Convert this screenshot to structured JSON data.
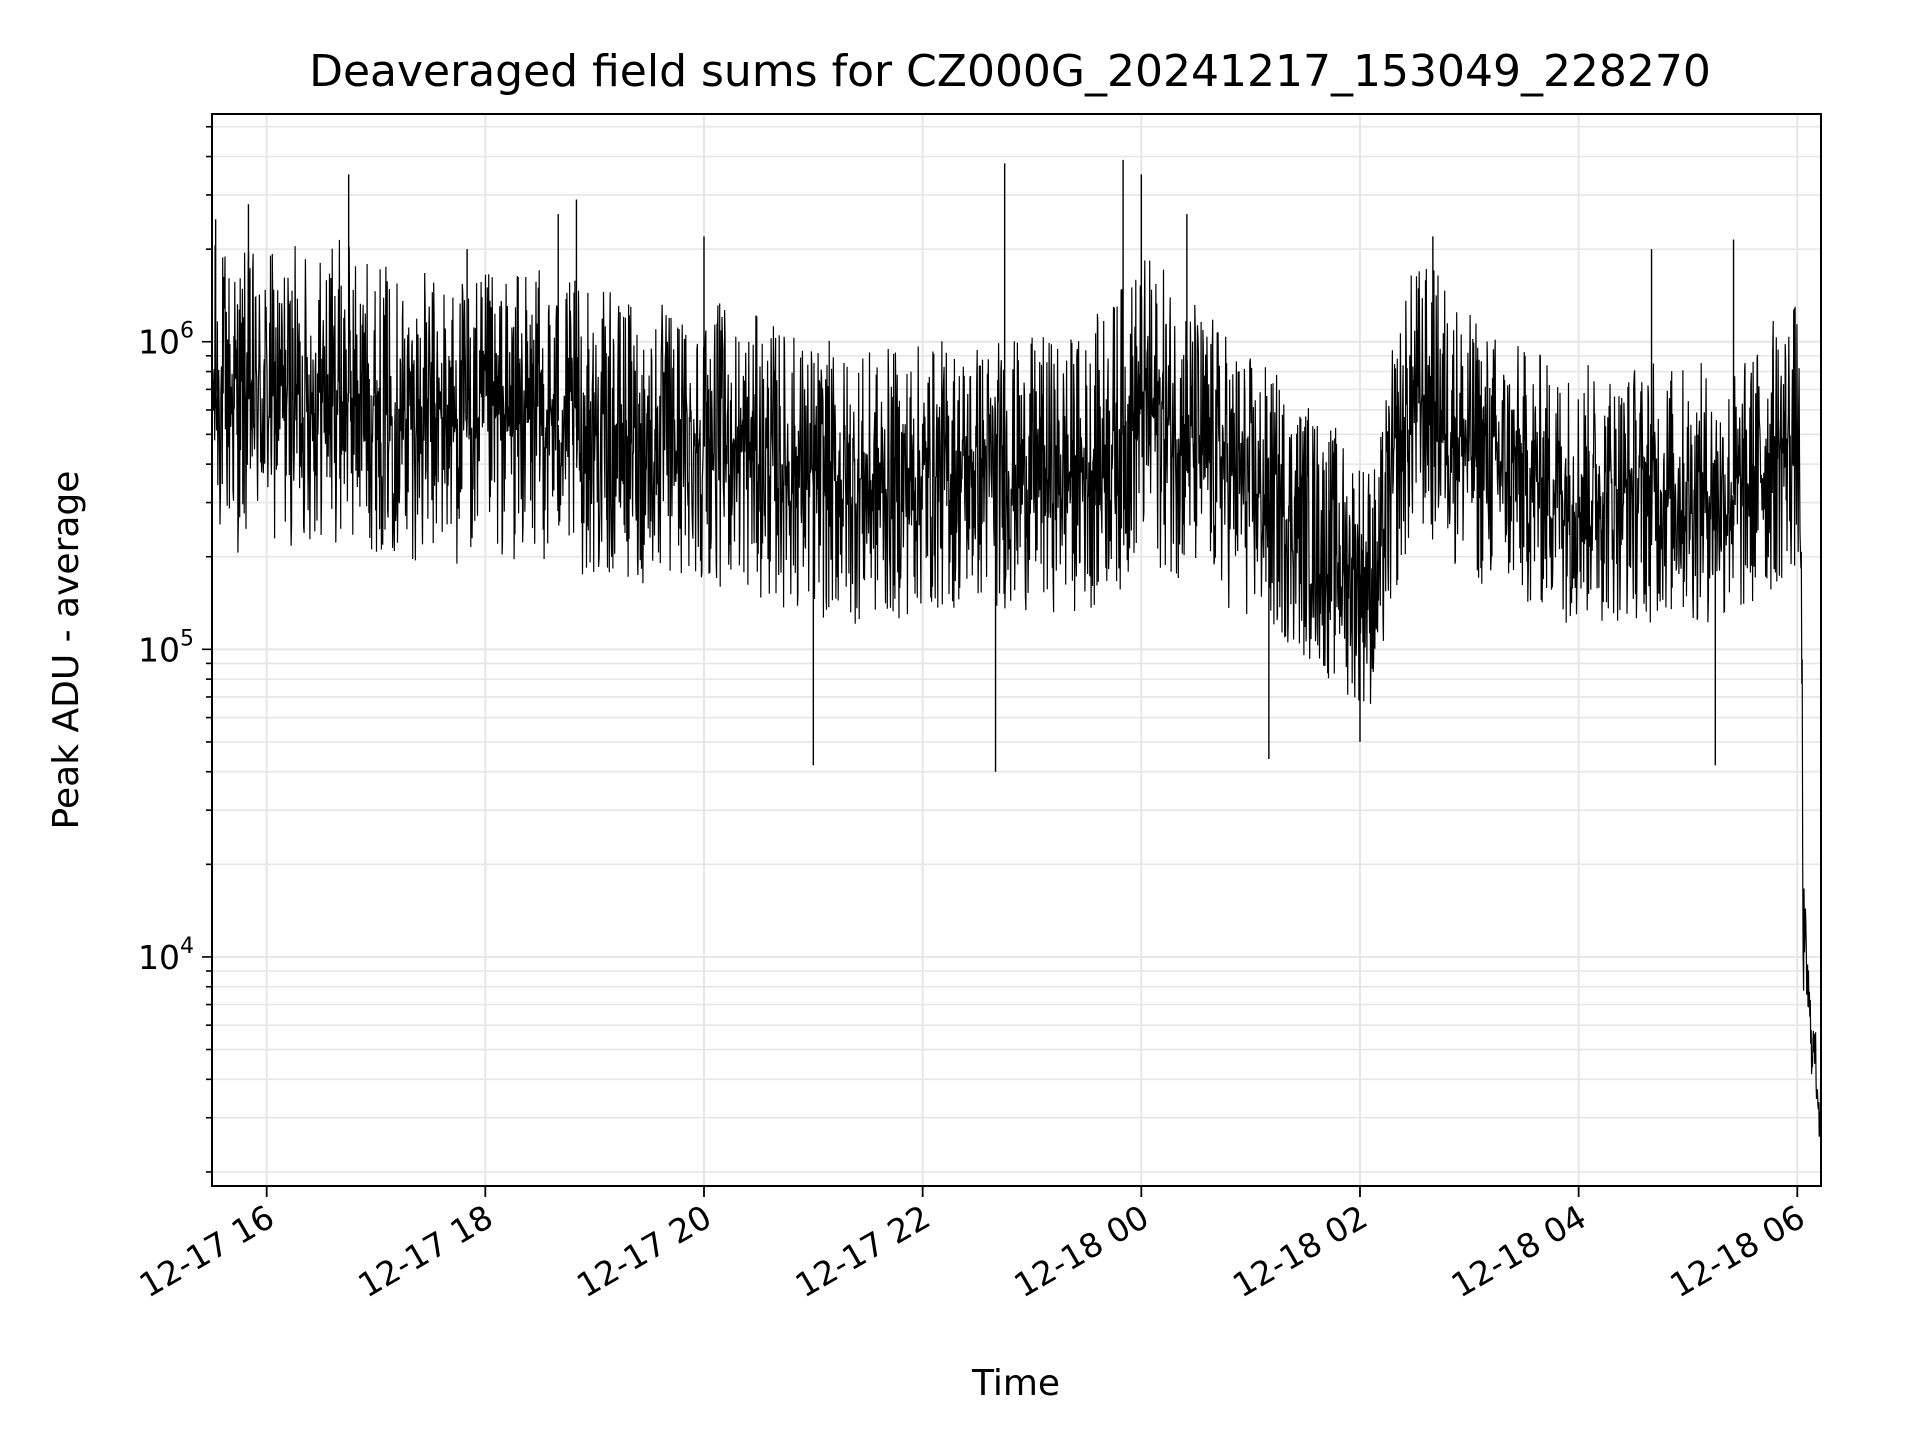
{
  "chart_data": {
    "type": "line",
    "title": "Deaveraged field sums for CZ000G_20241217_153049_228270",
    "xlabel": "Time",
    "ylabel": "Peak ADU - average",
    "y_scale": "log",
    "ylim": [
      1800,
      5500000
    ],
    "xlim": [
      "2024-12-17 15:30",
      "2024-12-18 06:13"
    ],
    "x_ticks": [
      {
        "x": "2024-12-17 16:00",
        "label": "12-17 16"
      },
      {
        "x": "2024-12-17 18:00",
        "label": "12-17 18"
      },
      {
        "x": "2024-12-17 20:00",
        "label": "12-17 20"
      },
      {
        "x": "2024-12-17 22:00",
        "label": "12-17 22"
      },
      {
        "x": "2024-12-18 00:00",
        "label": "12-18 00"
      },
      {
        "x": "2024-12-18 02:00",
        "label": "12-18 02"
      },
      {
        "x": "2024-12-18 04:00",
        "label": "12-18 04"
      },
      {
        "x": "2024-12-18 06:00",
        "label": "12-18 06"
      }
    ],
    "y_ticks": [
      {
        "value": 10000,
        "base": "10",
        "exp": "4"
      },
      {
        "value": 100000,
        "base": "10",
        "exp": "5"
      },
      {
        "value": 1000000,
        "base": "10",
        "exp": "6"
      }
    ],
    "grid": true,
    "line_color": "#000000",
    "grid_color": "#e6e6e6",
    "series": [
      {
        "x": [
          "2024-12-17 15:30",
          "2024-12-17 15:45",
          "2024-12-17 16:00",
          "2024-12-17 16:30",
          "2024-12-17 16:40",
          "2024-12-17 17:00",
          "2024-12-17 17:30",
          "2024-12-17 18:00",
          "2024-12-17 18:30",
          "2024-12-17 19:00",
          "2024-12-17 19:30",
          "2024-12-17 20:00",
          "2024-12-17 20:30",
          "2024-12-17 21:00",
          "2024-12-17 21:30",
          "2024-12-17 22:00",
          "2024-12-17 22:30",
          "2024-12-17 23:00",
          "2024-12-17 23:30",
          "2024-12-17 23:50",
          "2024-12-18 00:00",
          "2024-12-18 00:20",
          "2024-12-18 00:40",
          "2024-12-18 01:00",
          "2024-12-18 01:30",
          "2024-12-18 01:50",
          "2024-12-18 02:10",
          "2024-12-18 02:30",
          "2024-12-18 02:45",
          "2024-12-18 03:00",
          "2024-12-18 03:30",
          "2024-12-18 04:00",
          "2024-12-18 04:30",
          "2024-12-18 05:00",
          "2024-12-18 05:30",
          "2024-12-18 05:50",
          "2024-12-18 06:00",
          "2024-12-18 06:03",
          "2024-12-18 06:07",
          "2024-12-18 06:10",
          "2024-12-18 06:12"
        ],
        "center": [
          700000,
          650000,
          650000,
          680000,
          700000,
          620000,
          560000,
          560000,
          580000,
          500000,
          460000,
          480000,
          420000,
          360000,
          330000,
          360000,
          380000,
          370000,
          380000,
          500000,
          620000,
          520000,
          420000,
          330000,
          250000,
          190000,
          160000,
          650000,
          600000,
          450000,
          360000,
          320000,
          330000,
          320000,
          320000,
          450000,
          500000,
          12000,
          6000,
          4500,
          3200
        ],
        "spread": [
          3.2,
          3.2,
          3.1,
          3.1,
          3.2,
          3.0,
          3.0,
          3.0,
          3.0,
          3.0,
          2.9,
          2.9,
          2.9,
          2.9,
          2.8,
          2.8,
          2.8,
          2.8,
          2.9,
          3.2,
          3.2,
          3.1,
          2.9,
          2.8,
          2.7,
          2.7,
          2.6,
          2.9,
          2.9,
          2.8,
          2.7,
          2.7,
          2.7,
          2.7,
          2.7,
          2.9,
          2.9,
          1.6,
          1.4,
          1.3,
          1.3
        ],
        "spikes": [
          {
            "x": "2024-12-17 15:32",
            "y": 2500000
          },
          {
            "x": "2024-12-17 15:50",
            "y": 2800000
          },
          {
            "x": "2024-12-17 16:45",
            "y": 3500000
          },
          {
            "x": "2024-12-17 17:50",
            "y": 2000000
          },
          {
            "x": "2024-12-17 18:40",
            "y": 2600000
          },
          {
            "x": "2024-12-17 18:50",
            "y": 2900000
          },
          {
            "x": "2024-12-17 20:00",
            "y": 2200000
          },
          {
            "x": "2024-12-17 22:45",
            "y": 3800000
          },
          {
            "x": "2024-12-17 23:50",
            "y": 3900000
          },
          {
            "x": "2024-12-18 00:00",
            "y": 3500000
          },
          {
            "x": "2024-12-18 00:25",
            "y": 2600000
          },
          {
            "x": "2024-12-18 02:40",
            "y": 2200000
          },
          {
            "x": "2024-12-18 04:40",
            "y": 2000000
          },
          {
            "x": "2024-12-18 05:25",
            "y": 2150000
          },
          {
            "x": "2024-12-17 21:00",
            "y": 42000
          },
          {
            "x": "2024-12-17 22:40",
            "y": 40000
          },
          {
            "x": "2024-12-18 01:10",
            "y": 44000
          },
          {
            "x": "2024-12-18 02:00",
            "y": 50000
          },
          {
            "x": "2024-12-18 05:15",
            "y": 42000
          },
          {
            "x": "2024-12-18 06:13",
            "y": 2600
          }
        ]
      }
    ]
  }
}
